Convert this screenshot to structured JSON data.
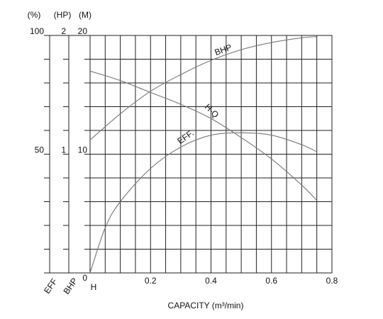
{
  "chart_data": {
    "type": "line",
    "xlabel": "CAPACITY (m³/min)",
    "ylabel": "(%)",
    "y2label": "(HP)",
    "y3label": "(M)",
    "yname": "EFF",
    "y2name": "BHP",
    "y3name": "H",
    "xlim": [
      0,
      0.8
    ],
    "xticks": [
      0.2,
      0.4,
      0.6,
      0.8
    ],
    "xminor": [
      0.05,
      0.1,
      0.15,
      0.25,
      0.3,
      0.35,
      0.45,
      0.5,
      0.55,
      0.65,
      0.7,
      0.75
    ],
    "ylim": [
      0,
      100
    ],
    "yticks": [
      50,
      100
    ],
    "y2lim": [
      0,
      2
    ],
    "y2ticks": [
      1,
      2
    ],
    "y3lim": [
      0,
      20
    ],
    "y3ticks": [
      0,
      10,
      20
    ],
    "y3minor": [
      2,
      4,
      6,
      8,
      12,
      14,
      16,
      18
    ],
    "grid": true,
    "series": [
      {
        "name": "BHP",
        "axis": "y2",
        "color": "#777777",
        "x": [
          0,
          0.1,
          0.2,
          0.3,
          0.4,
          0.5,
          0.6,
          0.7,
          0.75
        ],
        "values": [
          1.12,
          1.34,
          1.53,
          1.67,
          1.79,
          1.88,
          1.94,
          1.98,
          1.99
        ]
      },
      {
        "name": "H-Q",
        "axis": "y3",
        "color": "#777777",
        "x": [
          0,
          0.1,
          0.2,
          0.3,
          0.4,
          0.5,
          0.6,
          0.7,
          0.75
        ],
        "values": [
          17.0,
          16.2,
          15.2,
          14.2,
          13.0,
          11.4,
          9.6,
          7.4,
          6.1
        ]
      },
      {
        "name": "EFF.",
        "axis": "y",
        "color": "#777777",
        "x": [
          0,
          0.05,
          0.1,
          0.2,
          0.3,
          0.4,
          0.5,
          0.6,
          0.7,
          0.75
        ],
        "values": [
          0,
          19,
          30,
          44,
          53,
          58,
          59,
          58,
          54,
          51
        ]
      }
    ]
  }
}
